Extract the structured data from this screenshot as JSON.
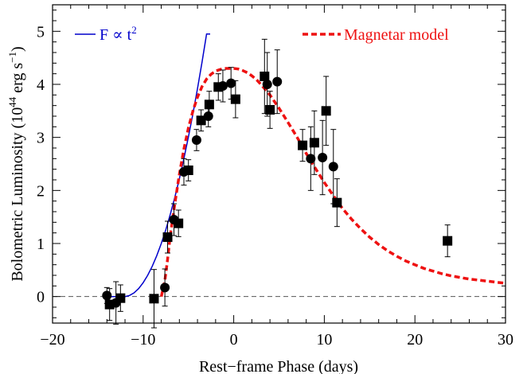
{
  "chart_data": {
    "type": "scatter",
    "xlabel": "Rest−frame Phase (days)",
    "ylabel": "Bolometric Luminosity (10",
    "ylabel_exp1": "44",
    "ylabel_mid": " erg s",
    "ylabel_exp2": "−1",
    "ylabel_end": ")",
    "xlim": [
      -20,
      30
    ],
    "ylim": [
      -0.5,
      5.5
    ],
    "xticks": [
      -20,
      -10,
      0,
      10,
      20,
      30
    ],
    "xtick_labels": [
      "−20",
      "−10",
      "0",
      "10",
      "20",
      "30"
    ],
    "yticks": [
      0,
      1,
      2,
      3,
      4,
      5
    ],
    "ytick_labels": [
      "0",
      "1",
      "2",
      "3",
      "4",
      "5"
    ],
    "grid": false,
    "legend_placement": "top",
    "zero_line": true,
    "series": [
      {
        "name": "F ∝ t²",
        "legend_main": "F ∝ t",
        "legend_sup": "2",
        "kind": "line",
        "color": "#0000cc",
        "x": [
          -14,
          -13.5,
          -13,
          -12.5,
          -12,
          -11.5,
          -11,
          -10.5,
          -10,
          -9.5,
          -9,
          -8.5,
          -8,
          -7.5,
          -7,
          -6.5,
          -6,
          -5.5,
          -5,
          -4.5,
          -4,
          -3.5,
          -3,
          -2.6
        ],
        "y": [
          0,
          0,
          0,
          0,
          0,
          0.02,
          0.07,
          0.15,
          0.26,
          0.4,
          0.57,
          0.77,
          1.0,
          1.26,
          1.55,
          1.87,
          2.22,
          2.6,
          3.01,
          3.45,
          3.92,
          4.42,
          4.95,
          4.95
        ]
      },
      {
        "name": "Magnetar model",
        "legend_main": "Magnetar model",
        "kind": "dashed",
        "color": "#ee1111",
        "x": [
          -8.0,
          -7.6,
          -7.3,
          -7.0,
          -6.5,
          -6.0,
          -5.5,
          -5.0,
          -4.5,
          -4.0,
          -3.5,
          -3.0,
          -2.5,
          -2.0,
          -1.5,
          -1.0,
          -0.5,
          0.0,
          0.5,
          1.0,
          1.5,
          2.0,
          2.5,
          3.0,
          4.0,
          5.0,
          6.0,
          7.0,
          8.0,
          9.0,
          10.0,
          11.0,
          12.0,
          13.0,
          14.0,
          15.0,
          16.0,
          17.0,
          18.0,
          19.0,
          20.0,
          21.0,
          22.0,
          23.0,
          24.0,
          25.0,
          26.0,
          27.0,
          28.0,
          29.0,
          30.0
        ],
        "y": [
          0,
          0.3,
          0.7,
          1.15,
          1.75,
          2.3,
          2.78,
          3.18,
          3.5,
          3.76,
          3.96,
          4.1,
          4.19,
          4.25,
          4.28,
          4.3,
          4.3,
          4.3,
          4.29,
          4.26,
          4.22,
          4.16,
          4.09,
          4.0,
          3.8,
          3.55,
          3.28,
          3.0,
          2.7,
          2.42,
          2.15,
          1.9,
          1.66,
          1.46,
          1.28,
          1.12,
          0.98,
          0.86,
          0.76,
          0.67,
          0.6,
          0.53,
          0.48,
          0.43,
          0.39,
          0.36,
          0.33,
          0.31,
          0.29,
          0.27,
          0.25
        ]
      },
      {
        "name": "circles",
        "kind": "points",
        "marker": "circle",
        "points": [
          {
            "x": -14.0,
            "y": 0.02,
            "err": 0.15
          },
          {
            "x": -13.0,
            "y": -0.12,
            "err": 0.4
          },
          {
            "x": -7.6,
            "y": 0.17,
            "err": 0.35
          },
          {
            "x": -6.6,
            "y": 1.45,
            "err": 0.3
          },
          {
            "x": -5.5,
            "y": 2.35,
            "err": 0.25
          },
          {
            "x": -4.1,
            "y": 2.95,
            "err": 0.2
          },
          {
            "x": -2.8,
            "y": 3.4,
            "err": 0.2
          },
          {
            "x": -1.2,
            "y": 3.97,
            "err": 0.3
          },
          {
            "x": -0.3,
            "y": 4.02,
            "err": 0.3
          },
          {
            "x": 3.7,
            "y": 4.0,
            "err": 0.6
          },
          {
            "x": 4.8,
            "y": 4.05,
            "err": 0.6
          },
          {
            "x": 8.5,
            "y": 2.6,
            "err": 0.6
          },
          {
            "x": 9.8,
            "y": 2.62,
            "err": 0.7
          },
          {
            "x": 11.0,
            "y": 2.45,
            "err": 0.7
          }
        ]
      },
      {
        "name": "squares",
        "kind": "points",
        "marker": "square",
        "points": [
          {
            "x": -13.7,
            "y": -0.15,
            "err": 0.3
          },
          {
            "x": -12.5,
            "y": -0.03,
            "err": 0.25
          },
          {
            "x": -8.8,
            "y": -0.04,
            "err": 0.55
          },
          {
            "x": -7.3,
            "y": 1.12,
            "err": 0.3
          },
          {
            "x": -6.1,
            "y": 1.38,
            "err": 0.25
          },
          {
            "x": -5.0,
            "y": 2.38,
            "err": 0.2
          },
          {
            "x": -3.6,
            "y": 3.32,
            "err": 0.2
          },
          {
            "x": -2.7,
            "y": 3.62,
            "err": 0.25
          },
          {
            "x": -1.7,
            "y": 3.95,
            "err": 0.25
          },
          {
            "x": 0.2,
            "y": 3.72,
            "err": 0.35
          },
          {
            "x": 3.4,
            "y": 4.15,
            "err": 0.7
          },
          {
            "x": 4.0,
            "y": 3.52,
            "err": 0.35
          },
          {
            "x": 7.6,
            "y": 2.85,
            "err": 0.3
          },
          {
            "x": 8.9,
            "y": 2.9,
            "err": 0.6
          },
          {
            "x": 10.2,
            "y": 3.5,
            "err": 0.65
          },
          {
            "x": 11.4,
            "y": 1.77,
            "err": 0.45
          },
          {
            "x": 23.6,
            "y": 1.05,
            "err": 0.3
          }
        ]
      }
    ]
  }
}
